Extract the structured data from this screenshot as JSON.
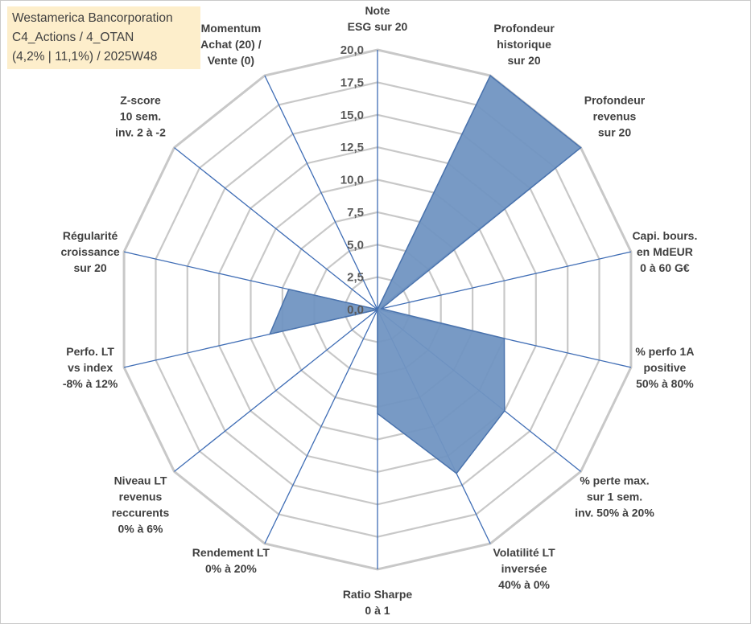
{
  "header": {
    "lines": [
      "Westamerica Bancorporation",
      "C4_Actions / 4_OTAN",
      "(4,2% | 11,1%) / 2025W48"
    ]
  },
  "colors": {
    "grid": "#c8c8c8",
    "axis": "#3f6db5",
    "fill": "#7195c2",
    "stroke": "#4a73ad",
    "header_bg": "#fdeecb"
  },
  "chart_data": {
    "type": "radar",
    "rmin": 0,
    "rmax": 20,
    "tick_labels": [
      "0,0",
      "2,5",
      "5,0",
      "7,5",
      "10,0",
      "12,5",
      "15,0",
      "17,5",
      "20,0"
    ],
    "grid": true,
    "axes": [
      {
        "label": [
          "Note",
          "ESG sur 20"
        ],
        "value": 0
      },
      {
        "label": [
          "Profondeur",
          "historique",
          "sur 20"
        ],
        "value": 20
      },
      {
        "label": [
          "Profondeur",
          "revenus",
          "sur 20"
        ],
        "value": 20
      },
      {
        "label": [
          "Capi. bours.",
          "en MdEUR",
          "0 à 60 G€"
        ],
        "value": 0.3
      },
      {
        "label": [
          "% perfo 1A",
          "positive",
          "50% à 80%"
        ],
        "value": 10
      },
      {
        "label": [
          "% perte max.",
          "sur 1 sem.",
          "inv. 50% à 20%"
        ],
        "value": 12.5
      },
      {
        "label": [
          "Volatilité LT",
          "inversée",
          "40% à 0%"
        ],
        "value": 14
      },
      {
        "label": [
          "Ratio Sharpe",
          "0 à 1"
        ],
        "value": 8
      },
      {
        "label": [
          "Rendement LT",
          "0% à 20%"
        ],
        "value": 0
      },
      {
        "label": [
          "Niveau LT",
          "revenus",
          "reccurents",
          "0% à 6%"
        ],
        "value": 0
      },
      {
        "label": [
          "Perfo. LT",
          "vs index",
          "-8% à 12%"
        ],
        "value": 8.5
      },
      {
        "label": [
          "Régularité",
          "croissance",
          "sur 20"
        ],
        "value": 7
      },
      {
        "label": [
          "Z-score",
          "10 sem.",
          "inv. 2 à -2"
        ],
        "value": 0
      },
      {
        "label": [
          "Momentum",
          "Achat (20) /",
          "Vente (0)"
        ],
        "value": 0
      }
    ]
  }
}
